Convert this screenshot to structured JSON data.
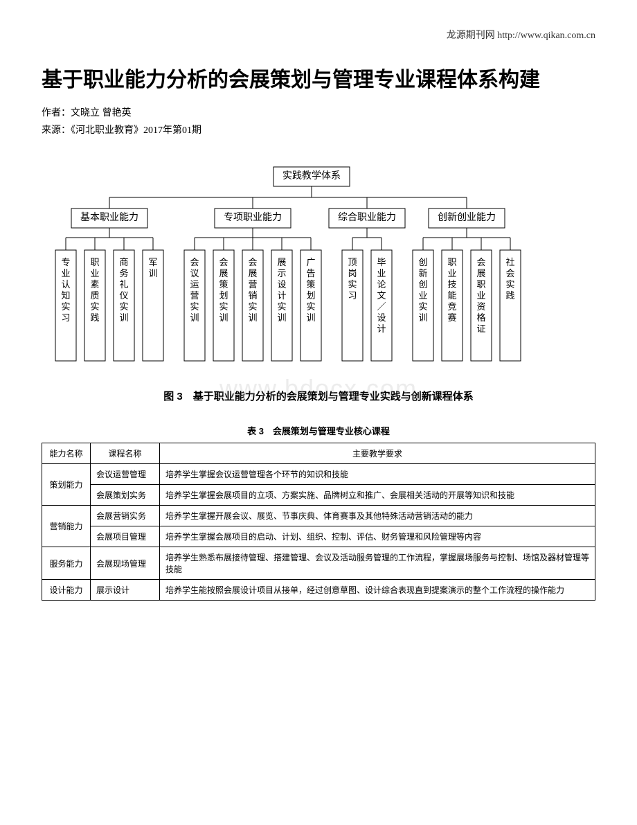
{
  "header": {
    "site_text": "龙源期刊网 http://www.qikan.com.cn"
  },
  "article": {
    "title": "基于职业能力分析的会展策划与管理专业课程体系构建",
    "author_line": "作者：文晓立 曾艳英",
    "source_line": "来源：《河北职业教育》2017年第01期"
  },
  "diagram": {
    "root": "实践教学体系",
    "level2": [
      "基本职业能力",
      "专项职业能力",
      "综合职业能力",
      "创新创业能力"
    ],
    "leaves": {
      "g1": [
        "专业认知实习",
        "职业素质实践",
        "商务礼仪实训",
        "军训"
      ],
      "g2": [
        "会议运营实训",
        "会展策划实训",
        "会展营销实训",
        "展示设计实训",
        "广告策划实训"
      ],
      "g3": [
        "顶岗实习",
        "毕业论文／设计"
      ],
      "g4": [
        "创新创业实训",
        "职业技能竞赛",
        "会展职业资格证",
        "社会实践"
      ]
    },
    "caption": "图 3　基于职业能力分析的会展策划与管理专业实践与创新课程体系",
    "node_stroke": "#000000",
    "node_fill": "#ffffff",
    "font_size_mid": 14,
    "font_size_leaf": 13
  },
  "table": {
    "caption": "表 3　会展策划与管理专业核心课程",
    "headers": [
      "能力名称",
      "课程名称",
      "主要教学要求"
    ],
    "groups": [
      {
        "cat": "策划能力",
        "rows": [
          {
            "course": "会议运营管理",
            "req": "培养学生掌握会议运营管理各个环节的知识和技能"
          },
          {
            "course": "会展策划实务",
            "req": "培养学生掌握会展项目的立项、方案实施、品牌树立和推广、会展相关活动的开展等知识和技能"
          }
        ]
      },
      {
        "cat": "营销能力",
        "rows": [
          {
            "course": "会展营销实务",
            "req": "培养学生掌握开展会议、展览、节事庆典、体育赛事及其他特殊活动营销活动的能力"
          },
          {
            "course": "会展项目管理",
            "req": "培养学生掌握会展项目的启动、计划、组织、控制、评估、财务管理和风险管理等内容"
          }
        ]
      },
      {
        "cat": "服务能力",
        "rows": [
          {
            "course": "会展现场管理",
            "req": "培养学生熟悉布展接待管理、搭建管理、会议及活动服务管理的工作流程，掌握展场服务与控制、场馆及器材管理等技能"
          }
        ]
      },
      {
        "cat": "设计能力",
        "rows": [
          {
            "course": "展示设计",
            "req": "培养学生能按照会展设计项目从接单，经过创意草图、设计综合表现直到提案演示的整个工作流程的操作能力"
          }
        ]
      }
    ]
  },
  "watermark": "www.bdocx.com"
}
